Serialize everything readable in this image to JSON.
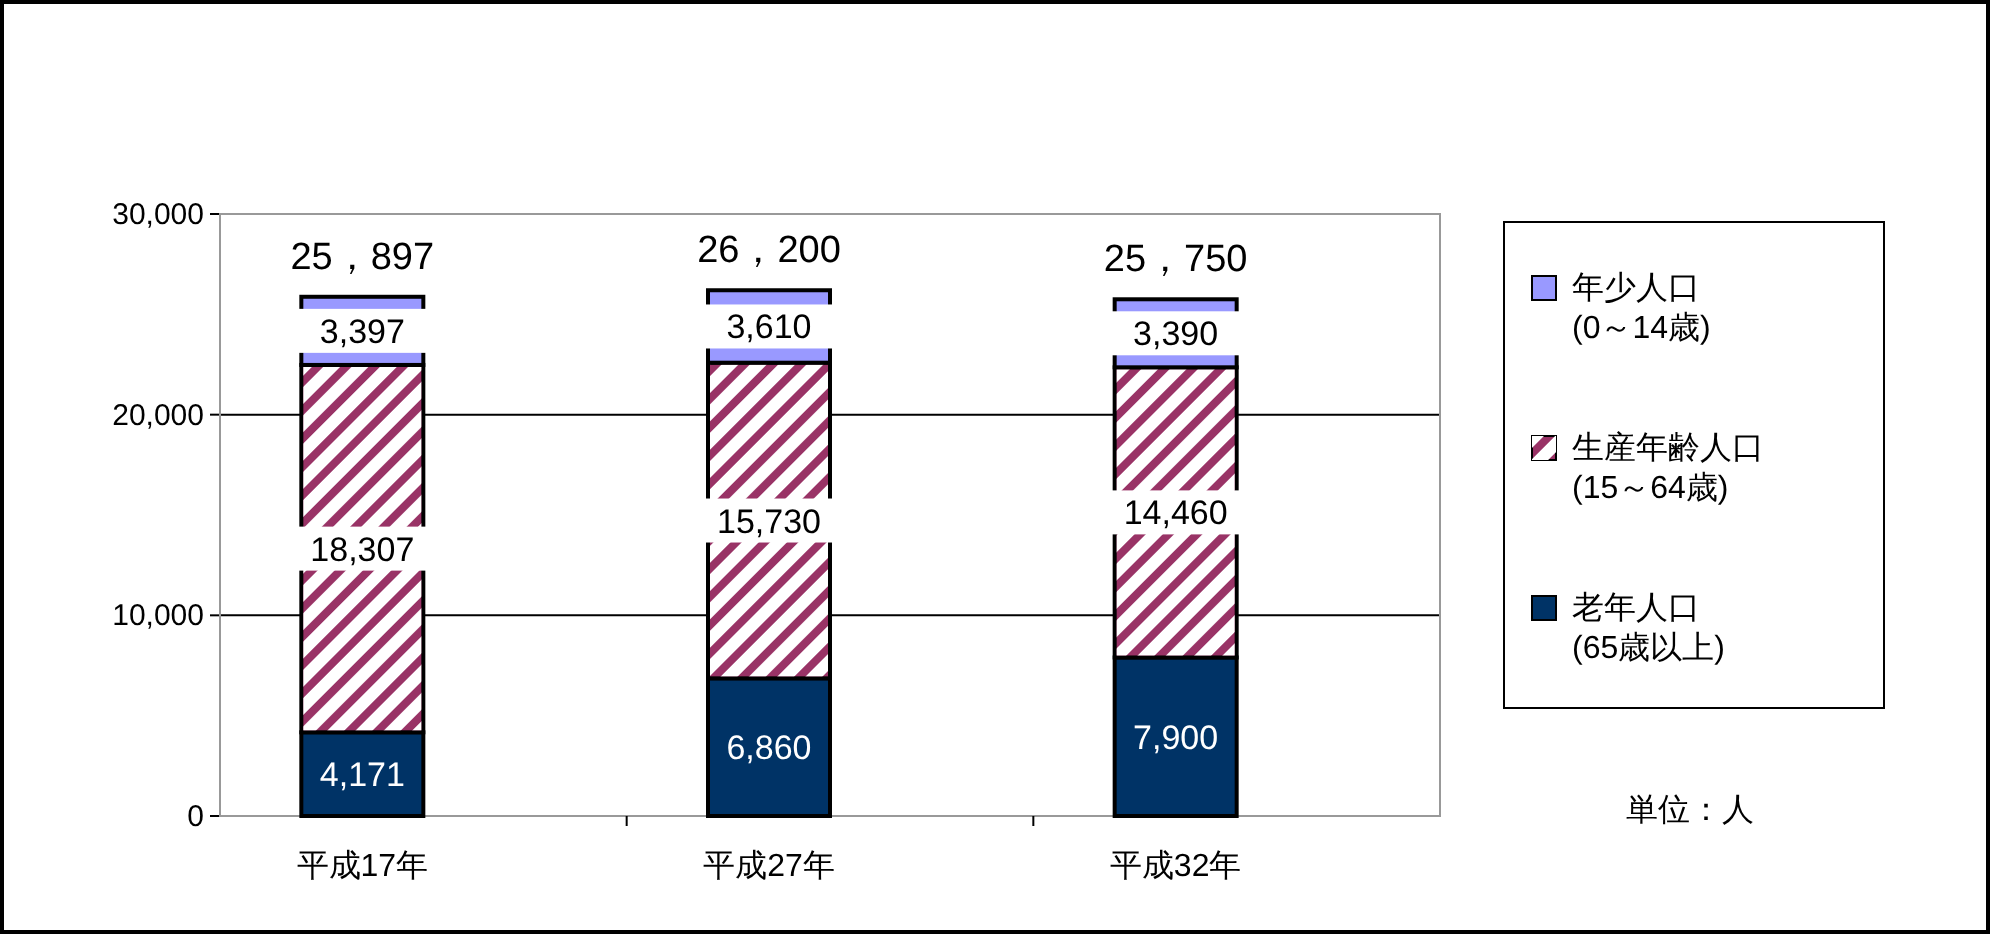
{
  "chart_data": {
    "type": "bar",
    "stacked": true,
    "categories": [
      "平成17年",
      "平成27年",
      "平成32年"
    ],
    "series": [
      {
        "name": "老年人口\n(65歳以上)",
        "color": "#003366",
        "values": [
          4171,
          6860,
          7900
        ],
        "value_labels": [
          "4,171",
          "6,860",
          "7,900"
        ]
      },
      {
        "name": "生産年齢人口\n(15～64歳)",
        "color": "#993366",
        "values": [
          18307,
          15730,
          14460
        ],
        "value_labels": [
          "18,307",
          "15,730",
          "14,460"
        ]
      },
      {
        "name": "年少人口\n(0～14歳)",
        "color": "#9999ff",
        "values": [
          3397,
          3610,
          3390
        ],
        "value_labels": [
          "3,397",
          "3,610",
          "3,390"
        ]
      }
    ],
    "totals": [
      "25，897",
      "26，200",
      "25，750"
    ],
    "ylim": [
      0,
      30000
    ],
    "yticks": [
      0,
      {
        "value": 10000,
        "label": "10,000"
      },
      {
        "value": 20000,
        "label": "20,000"
      },
      {
        "value": 30000,
        "label": "30,000"
      }
    ],
    "grid": "y",
    "legend": "right",
    "annotations": [
      "単位：人"
    ]
  }
}
